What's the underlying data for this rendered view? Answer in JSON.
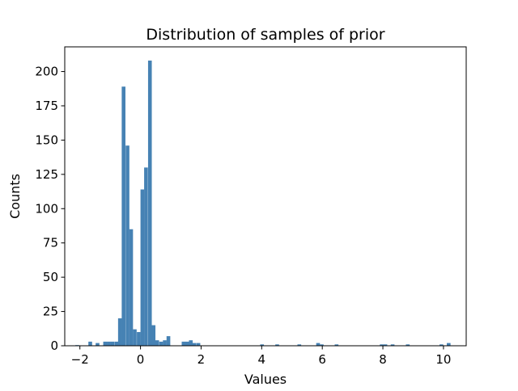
{
  "chart_data": {
    "type": "bar",
    "title": "Distribution of samples of prior",
    "xlabel": "Values",
    "ylabel": "Counts",
    "xlim": [
      -2.5,
      10.75
    ],
    "ylim": [
      0,
      218
    ],
    "xticks": [
      -2,
      0,
      2,
      4,
      6,
      8,
      10
    ],
    "xtick_labels": [
      "−2",
      "0",
      "2",
      "4",
      "6",
      "8",
      "10"
    ],
    "yticks": [
      0,
      25,
      50,
      75,
      100,
      125,
      150,
      175,
      200
    ],
    "ytick_labels": [
      "0",
      "25",
      "50",
      "75",
      "100",
      "125",
      "150",
      "175",
      "200"
    ],
    "bar_color": "#4682b4",
    "grid": false,
    "legend": "none",
    "bin_width": 0.123,
    "bins": [
      {
        "x0": -2.15,
        "count": 0.5
      },
      {
        "x0": -1.72,
        "count": 3
      },
      {
        "x0": -1.48,
        "count": 2
      },
      {
        "x0": -1.23,
        "count": 3
      },
      {
        "x0": -1.11,
        "count": 3
      },
      {
        "x0": -0.99,
        "count": 3
      },
      {
        "x0": -0.86,
        "count": 3
      },
      {
        "x0": -0.74,
        "count": 20
      },
      {
        "x0": -0.62,
        "count": 189
      },
      {
        "x0": -0.49,
        "count": 146
      },
      {
        "x0": -0.37,
        "count": 85
      },
      {
        "x0": -0.25,
        "count": 12
      },
      {
        "x0": -0.12,
        "count": 10
      },
      {
        "x0": 0.0,
        "count": 114
      },
      {
        "x0": 0.12,
        "count": 130
      },
      {
        "x0": 0.25,
        "count": 208
      },
      {
        "x0": 0.37,
        "count": 15
      },
      {
        "x0": 0.49,
        "count": 4
      },
      {
        "x0": 0.62,
        "count": 3
      },
      {
        "x0": 0.74,
        "count": 4
      },
      {
        "x0": 0.86,
        "count": 7
      },
      {
        "x0": 1.36,
        "count": 3
      },
      {
        "x0": 1.48,
        "count": 3
      },
      {
        "x0": 1.6,
        "count": 4
      },
      {
        "x0": 1.72,
        "count": 2
      },
      {
        "x0": 1.85,
        "count": 2
      },
      {
        "x0": 3.95,
        "count": 1
      },
      {
        "x0": 4.45,
        "count": 1
      },
      {
        "x0": 5.18,
        "count": 1
      },
      {
        "x0": 5.8,
        "count": 2
      },
      {
        "x0": 5.92,
        "count": 1
      },
      {
        "x0": 6.41,
        "count": 1
      },
      {
        "x0": 7.9,
        "count": 1
      },
      {
        "x0": 8.02,
        "count": 1
      },
      {
        "x0": 8.26,
        "count": 1
      },
      {
        "x0": 8.76,
        "count": 1
      },
      {
        "x0": 9.87,
        "count": 1
      },
      {
        "x0": 10.11,
        "count": 2
      }
    ]
  }
}
